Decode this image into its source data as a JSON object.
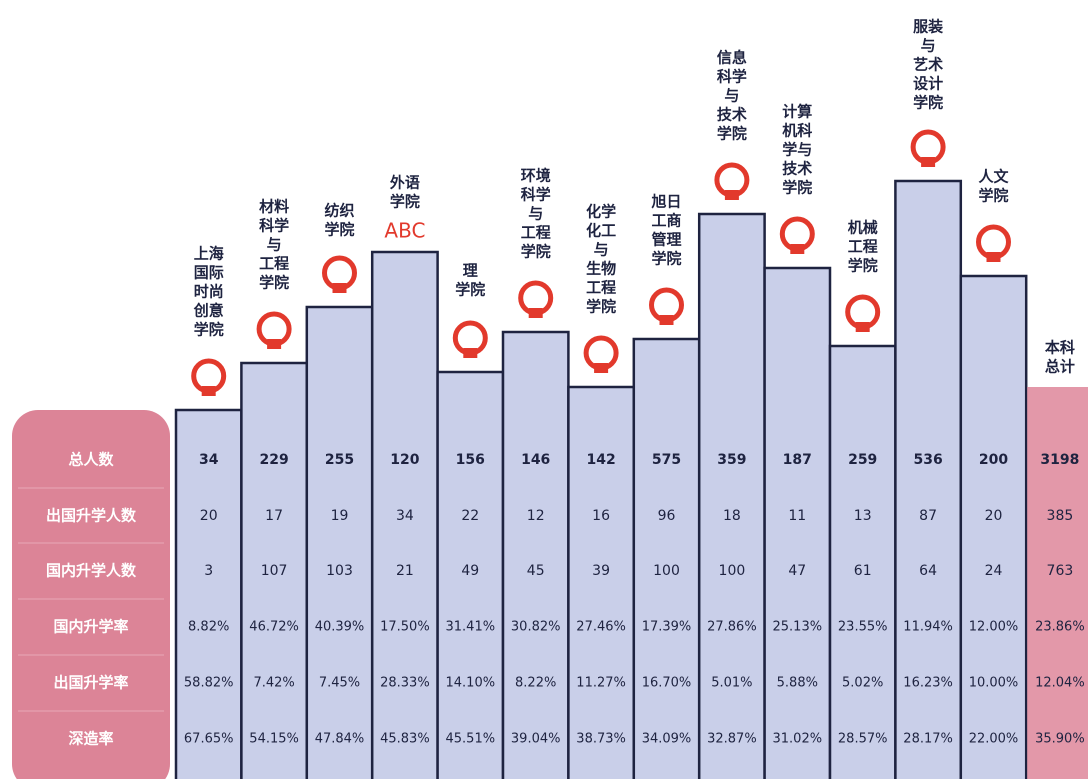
{
  "table": {
    "row_headers": [
      "总人数",
      "出国升学人数",
      "国内升学人数",
      "国内升学率",
      "出国升学率",
      "深造率"
    ],
    "columns": [
      {
        "name_lines": [
          "上海",
          "国际",
          "时尚",
          "创意",
          "学院"
        ],
        "cells": [
          "34",
          "20",
          "3",
          "8.82%",
          "58.82%",
          "67.65%"
        ]
      },
      {
        "name_lines": [
          "材料",
          "科学",
          "与",
          "工程",
          "学院"
        ],
        "cells": [
          "229",
          "17",
          "107",
          "46.72%",
          "7.42%",
          "54.15%"
        ]
      },
      {
        "name_lines": [
          "纺织",
          "学院"
        ],
        "cells": [
          "255",
          "19",
          "103",
          "40.39%",
          "7.45%",
          "47.84%"
        ]
      },
      {
        "name_lines": [
          "外语",
          "学院"
        ],
        "icon_text": "ABC",
        "cells": [
          "120",
          "34",
          "21",
          "17.50%",
          "28.33%",
          "45.83%"
        ]
      },
      {
        "name_lines": [
          "理",
          "学院"
        ],
        "cells": [
          "156",
          "22",
          "49",
          "31.41%",
          "14.10%",
          "45.51%"
        ]
      },
      {
        "name_lines": [
          "环境",
          "科学",
          "与",
          "工程",
          "学院"
        ],
        "cells": [
          "146",
          "12",
          "45",
          "30.82%",
          "8.22%",
          "39.04%"
        ]
      },
      {
        "name_lines": [
          "化学",
          "化工",
          "与",
          "生物",
          "工程",
          "学院"
        ],
        "cells": [
          "142",
          "16",
          "39",
          "27.46%",
          "11.27%",
          "38.73%"
        ]
      },
      {
        "name_lines": [
          "旭日",
          "工商",
          "管理",
          "学院"
        ],
        "cells": [
          "575",
          "96",
          "100",
          "17.39%",
          "16.70%",
          "34.09%"
        ]
      },
      {
        "name_lines": [
          "信息",
          "科学",
          "与",
          "技术",
          "学院"
        ],
        "cells": [
          "359",
          "18",
          "100",
          "27.86%",
          "5.01%",
          "32.87%"
        ]
      },
      {
        "name_lines": [
          "计算",
          "机科",
          "学与",
          "技术",
          "学院"
        ],
        "cells": [
          "187",
          "11",
          "47",
          "25.13%",
          "5.88%",
          "31.02%"
        ]
      },
      {
        "name_lines": [
          "机械",
          "工程",
          "学院"
        ],
        "cells": [
          "259",
          "13",
          "61",
          "23.55%",
          "5.02%",
          "28.57%"
        ]
      },
      {
        "name_lines": [
          "服装",
          "与",
          "艺术",
          "设计",
          "学院"
        ],
        "cells": [
          "536",
          "87",
          "64",
          "11.94%",
          "16.23%",
          "28.17%"
        ]
      },
      {
        "name_lines": [
          "人文",
          "学院"
        ],
        "cells": [
          "200",
          "20",
          "24",
          "12.00%",
          "10.00%",
          "22.00%"
        ]
      }
    ],
    "total": {
      "name_lines": [
        "本科",
        "总计"
      ],
      "cells": [
        "3198",
        "385",
        "763",
        "23.86%",
        "12.04%",
        "35.90%"
      ]
    }
  }
}
